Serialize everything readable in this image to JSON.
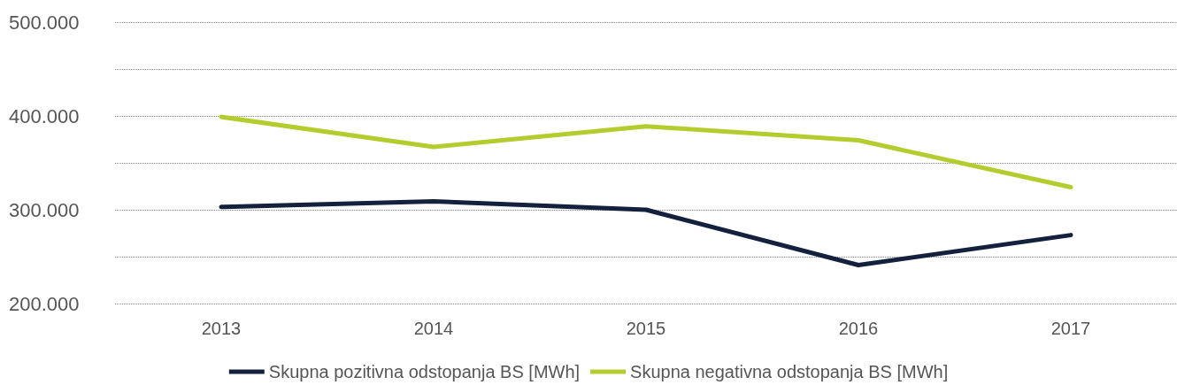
{
  "chart_data": {
    "type": "line",
    "categories": [
      "2013",
      "2014",
      "2015",
      "2016",
      "2017"
    ],
    "series": [
      {
        "name": "Skupna pozitivna odstopanja BS [MWh]",
        "color": "#14213d",
        "values": [
          303000,
          309000,
          300000,
          241000,
          273000
        ]
      },
      {
        "name": "Skupna negativna odstopanja BS [MWh]",
        "color": "#b5cc2e",
        "values": [
          399000,
          367000,
          389000,
          374000,
          324000
        ]
      }
    ],
    "ylim": [
      200000,
      500000
    ],
    "yticks": [
      {
        "value": 200000,
        "label": "200.000"
      },
      {
        "value": 250000,
        "label": null
      },
      {
        "value": 300000,
        "label": "300.000"
      },
      {
        "value": 350000,
        "label": null
      },
      {
        "value": 400000,
        "label": "400.000"
      },
      {
        "value": 450000,
        "label": null
      },
      {
        "value": 500000,
        "label": "500.000"
      }
    ],
    "grid": "y",
    "legend": "bottom",
    "marker": "none",
    "line_style": "solid"
  }
}
